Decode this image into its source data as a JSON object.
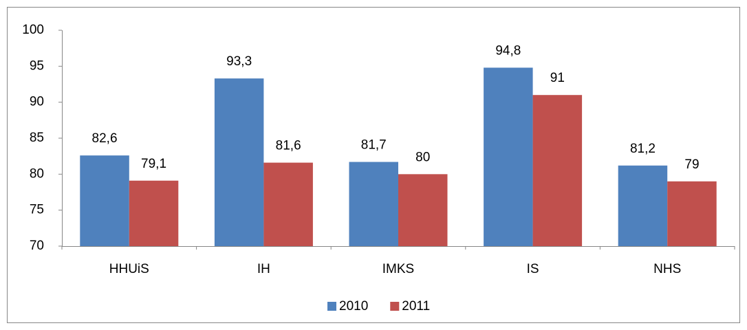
{
  "chart_data": {
    "type": "bar",
    "categories": [
      "HHUiS",
      "IH",
      "IMKS",
      "IS",
      "NHS"
    ],
    "series": [
      {
        "name": "2010",
        "color": "#4f81bd",
        "values": [
          82.6,
          93.3,
          81.7,
          94.8,
          81.2
        ],
        "value_labels": [
          "82,6",
          "93,3",
          "81,7",
          "94,8",
          "81,2"
        ]
      },
      {
        "name": "2011",
        "color": "#c0504d",
        "values": [
          79.1,
          81.6,
          80,
          91,
          79
        ],
        "value_labels": [
          "79,1",
          "81,6",
          "80",
          "91",
          "79"
        ]
      }
    ],
    "ylim": [
      70,
      100
    ],
    "yticks": [
      70,
      75,
      80,
      85,
      90,
      95,
      100
    ],
    "grid": false,
    "legend": "bottom"
  }
}
